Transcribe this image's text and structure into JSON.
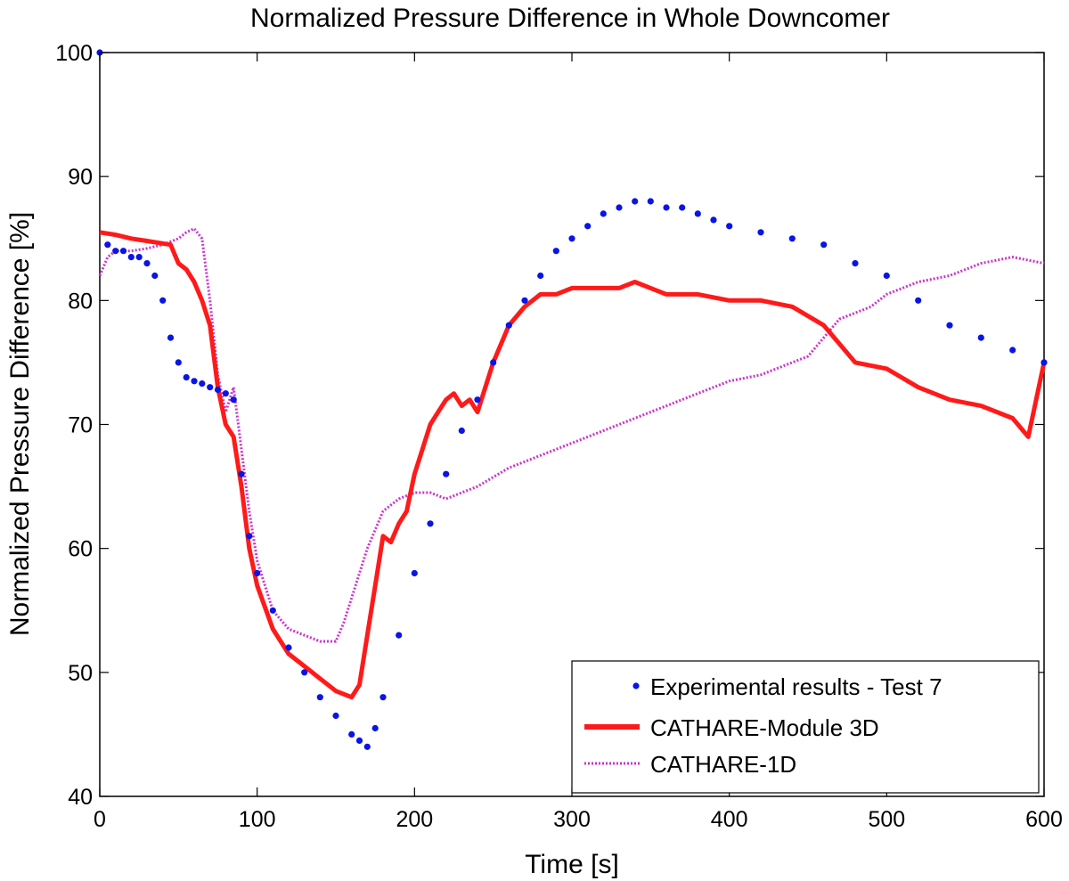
{
  "chart_data": {
    "type": "line",
    "title": "Normalized Pressure Difference in Whole Downcomer",
    "xlabel": "Time [s]",
    "ylabel": "Normalized Pressure Difference [%]",
    "xlim": [
      0,
      600
    ],
    "ylim": [
      40,
      100
    ],
    "xticks": [
      0,
      100,
      200,
      300,
      400,
      500,
      600
    ],
    "yticks": [
      40,
      50,
      60,
      70,
      80,
      90,
      100
    ],
    "grid": false,
    "legend_position": "bottom-right",
    "colors": {
      "experimental": "#0a14e6",
      "module3d": "#ff1a1a",
      "oned": "#cc33cc",
      "axis": "#000000"
    },
    "series": [
      {
        "name": "Experimental results - Test 7",
        "style": "markers",
        "x": [
          0,
          5,
          10,
          15,
          20,
          25,
          30,
          35,
          40,
          45,
          50,
          55,
          60,
          65,
          70,
          75,
          80,
          85,
          90,
          95,
          100,
          110,
          120,
          130,
          140,
          150,
          160,
          165,
          170,
          175,
          180,
          190,
          200,
          210,
          220,
          230,
          240,
          250,
          260,
          270,
          280,
          290,
          300,
          310,
          320,
          330,
          340,
          350,
          360,
          370,
          380,
          390,
          400,
          420,
          440,
          460,
          480,
          500,
          520,
          540,
          560,
          580,
          600
        ],
        "values": [
          100,
          84.5,
          84,
          84,
          83.5,
          83.5,
          83,
          82,
          80,
          77,
          75,
          73.8,
          73.5,
          73.3,
          73,
          72.8,
          72.5,
          72,
          66,
          61,
          58,
          55,
          52,
          50,
          48,
          46.5,
          45,
          44.5,
          44,
          45.5,
          48,
          53,
          58,
          62,
          66,
          69.5,
          72,
          75,
          78,
          80,
          82,
          84,
          85,
          86,
          87,
          87.5,
          88,
          88,
          87.5,
          87.5,
          87,
          86.5,
          86,
          85.5,
          85,
          84.5,
          83,
          82,
          80,
          78,
          77,
          76,
          75
        ]
      },
      {
        "name": "CATHARE-Module 3D",
        "style": "solid",
        "x": [
          0,
          10,
          20,
          30,
          40,
          45,
          50,
          55,
          60,
          65,
          70,
          75,
          80,
          85,
          90,
          95,
          100,
          110,
          120,
          130,
          140,
          150,
          160,
          165,
          170,
          175,
          180,
          185,
          190,
          195,
          200,
          205,
          210,
          215,
          220,
          225,
          230,
          235,
          240,
          245,
          250,
          260,
          270,
          280,
          290,
          300,
          310,
          320,
          330,
          340,
          350,
          360,
          380,
          400,
          420,
          440,
          460,
          480,
          500,
          520,
          540,
          560,
          580,
          590,
          600
        ],
        "values": [
          85.5,
          85.3,
          85,
          84.8,
          84.6,
          84.5,
          83,
          82.5,
          81.5,
          80,
          78,
          73,
          70,
          69,
          65,
          60,
          57,
          53.5,
          51.5,
          50.5,
          49.5,
          48.5,
          48,
          49,
          53,
          57,
          61,
          60.5,
          62,
          63,
          66,
          68,
          70,
          71,
          72,
          72.5,
          71.5,
          72,
          71,
          73,
          75,
          78,
          79.5,
          80.5,
          80.5,
          81,
          81,
          81,
          81,
          81.5,
          81,
          80.5,
          80.5,
          80,
          80,
          79.5,
          78,
          75,
          74.5,
          73,
          72,
          71.5,
          70.5,
          69,
          75
        ]
      },
      {
        "name": "CATHARE-1D",
        "style": "dotted",
        "x": [
          0,
          5,
          10,
          20,
          30,
          40,
          50,
          55,
          60,
          65,
          70,
          75,
          80,
          85,
          90,
          95,
          100,
          110,
          120,
          130,
          140,
          150,
          155,
          160,
          165,
          170,
          180,
          190,
          200,
          210,
          220,
          230,
          240,
          260,
          280,
          300,
          320,
          340,
          360,
          380,
          400,
          420,
          440,
          450,
          460,
          470,
          480,
          490,
          500,
          520,
          540,
          560,
          580,
          600
        ],
        "values": [
          82,
          83.5,
          84,
          84,
          84.2,
          84.5,
          85,
          85.5,
          85.8,
          85,
          80,
          74,
          71,
          73,
          68,
          63,
          59,
          55,
          53.5,
          53,
          52.5,
          52.5,
          54,
          56,
          58,
          60,
          63,
          64,
          64.5,
          64.5,
          64,
          64.5,
          65,
          66.5,
          67.5,
          68.5,
          69.5,
          70.5,
          71.5,
          72.5,
          73.5,
          74,
          75,
          75.5,
          77,
          78.5,
          79,
          79.5,
          80.5,
          81.5,
          82,
          83,
          83.5,
          83
        ]
      }
    ]
  }
}
